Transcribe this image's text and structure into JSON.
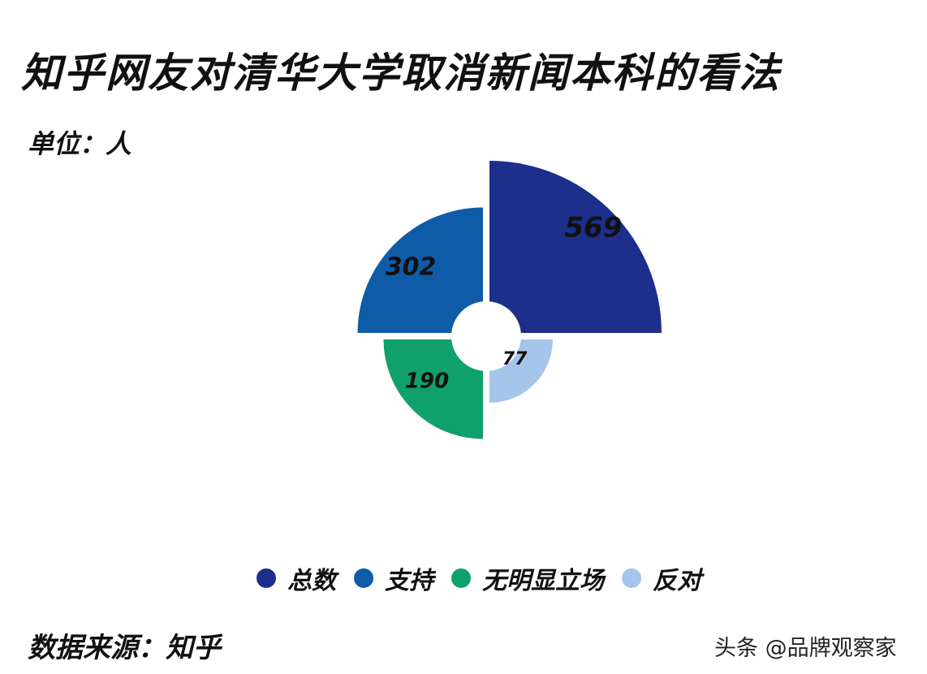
{
  "header": {
    "title": "知乎网友对清华大学取消新闻本科的看法",
    "unit": "单位：人"
  },
  "footer": {
    "source": "数据来源：知乎",
    "watermark": "头条 @品牌观察家"
  },
  "chart_data": {
    "type": "pie",
    "variant": "rose-quadrant",
    "title": "知乎网友对清华大学取消新闻本科的看法",
    "unit": "人",
    "legend_position": "bottom",
    "series": [
      {
        "name": "总数",
        "value": 569,
        "color": "#1d2f8a"
      },
      {
        "name": "支持",
        "value": 302,
        "color": "#0e5ca8"
      },
      {
        "name": "无明显立场",
        "value": 190,
        "color": "#10a06c"
      },
      {
        "name": "反对",
        "value": 77,
        "color": "#a6c5ea"
      }
    ]
  }
}
